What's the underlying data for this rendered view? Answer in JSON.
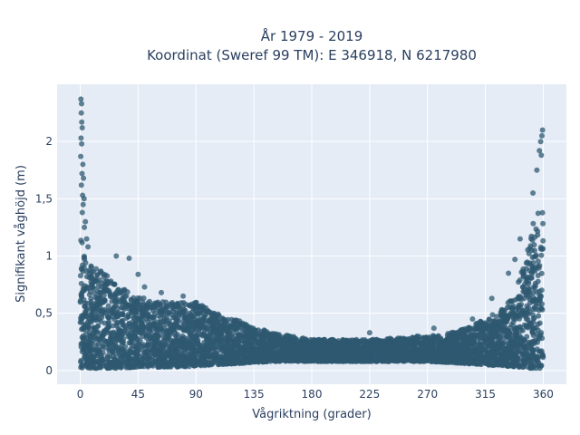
{
  "chart_data": {
    "type": "scatter",
    "title_lines": [
      "År 1979 - 2019",
      "Koordinat (Sweref 99 TM): E 346918, N 6217980"
    ],
    "xlabel": "Vågriktning (grader)",
    "ylabel": "Signifikant våghöjd (m)",
    "xlim": [
      -18,
      378
    ],
    "ylim": [
      -0.12,
      2.5
    ],
    "x_ticks": [
      {
        "value": 0,
        "label": "0"
      },
      {
        "value": 45,
        "label": "45"
      },
      {
        "value": 90,
        "label": "90"
      },
      {
        "value": 135,
        "label": "135"
      },
      {
        "value": 180,
        "label": "180"
      },
      {
        "value": 225,
        "label": "225"
      },
      {
        "value": 270,
        "label": "270"
      },
      {
        "value": 315,
        "label": "315"
      },
      {
        "value": 360,
        "label": "360"
      }
    ],
    "y_ticks": [
      {
        "value": 0,
        "label": "0"
      },
      {
        "value": 0.5,
        "label": "0,5"
      },
      {
        "value": 1,
        "label": "1"
      },
      {
        "value": 1.5,
        "label": "1,5"
      },
      {
        "value": 2,
        "label": "2"
      }
    ],
    "grid": true,
    "marker_color": "#2e5870",
    "plot_bg": "#e5ecf6",
    "envelope": {
      "direction_deg": [
        0,
        5,
        10,
        20,
        30,
        45,
        60,
        75,
        90,
        105,
        120,
        135,
        150,
        165,
        180,
        195,
        210,
        225,
        240,
        255,
        270,
        285,
        300,
        315,
        330,
        340,
        345,
        350,
        355,
        360
      ],
      "upper_height_m": [
        1.2,
        1.0,
        0.9,
        0.85,
        0.75,
        0.65,
        0.6,
        0.6,
        0.6,
        0.5,
        0.45,
        0.38,
        0.33,
        0.3,
        0.27,
        0.27,
        0.27,
        0.27,
        0.28,
        0.29,
        0.3,
        0.32,
        0.37,
        0.45,
        0.55,
        0.75,
        0.95,
        1.15,
        1.45,
        1.4
      ],
      "lower_height_m": [
        0.02,
        0.02,
        0.02,
        0.02,
        0.02,
        0.03,
        0.03,
        0.03,
        0.04,
        0.05,
        0.06,
        0.07,
        0.08,
        0.08,
        0.08,
        0.08,
        0.08,
        0.08,
        0.08,
        0.08,
        0.08,
        0.07,
        0.06,
        0.05,
        0.04,
        0.03,
        0.03,
        0.02,
        0.02,
        0.02
      ]
    },
    "outliers": [
      {
        "x": 0.5,
        "y": 2.37
      },
      {
        "x": 1.0,
        "y": 2.33
      },
      {
        "x": 0.8,
        "y": 2.25
      },
      {
        "x": 1.2,
        "y": 2.17
      },
      {
        "x": 1.5,
        "y": 2.12
      },
      {
        "x": 0.6,
        "y": 2.03
      },
      {
        "x": 1.1,
        "y": 1.98
      },
      {
        "x": 0.4,
        "y": 1.87
      },
      {
        "x": 2.0,
        "y": 1.8
      },
      {
        "x": 1.4,
        "y": 1.72
      },
      {
        "x": 2.5,
        "y": 1.68
      },
      {
        "x": 0.9,
        "y": 1.62
      },
      {
        "x": 1.8,
        "y": 1.53
      },
      {
        "x": 3.0,
        "y": 1.5
      },
      {
        "x": 2.2,
        "y": 1.45
      },
      {
        "x": 1.6,
        "y": 1.38
      },
      {
        "x": 4.0,
        "y": 1.3
      },
      {
        "x": 3.2,
        "y": 1.25
      },
      {
        "x": 5.0,
        "y": 1.15
      },
      {
        "x": 6.0,
        "y": 1.08
      },
      {
        "x": 28,
        "y": 1.0
      },
      {
        "x": 38,
        "y": 0.98
      },
      {
        "x": 45,
        "y": 0.84
      },
      {
        "x": 50,
        "y": 0.73
      },
      {
        "x": 63,
        "y": 0.68
      },
      {
        "x": 80,
        "y": 0.65
      },
      {
        "x": 107,
        "y": 0.48
      },
      {
        "x": 225,
        "y": 0.33
      },
      {
        "x": 262,
        "y": 0.3
      },
      {
        "x": 275,
        "y": 0.37
      },
      {
        "x": 305,
        "y": 0.45
      },
      {
        "x": 320,
        "y": 0.63
      },
      {
        "x": 333,
        "y": 0.85
      },
      {
        "x": 338,
        "y": 0.97
      },
      {
        "x": 342,
        "y": 1.15
      },
      {
        "x": 352,
        "y": 1.55
      },
      {
        "x": 355,
        "y": 1.75
      },
      {
        "x": 357,
        "y": 1.92
      },
      {
        "x": 358,
        "y": 2.0
      },
      {
        "x": 359,
        "y": 2.05
      },
      {
        "x": 359.5,
        "y": 2.1
      },
      {
        "x": 358.5,
        "y": 1.88
      }
    ]
  }
}
